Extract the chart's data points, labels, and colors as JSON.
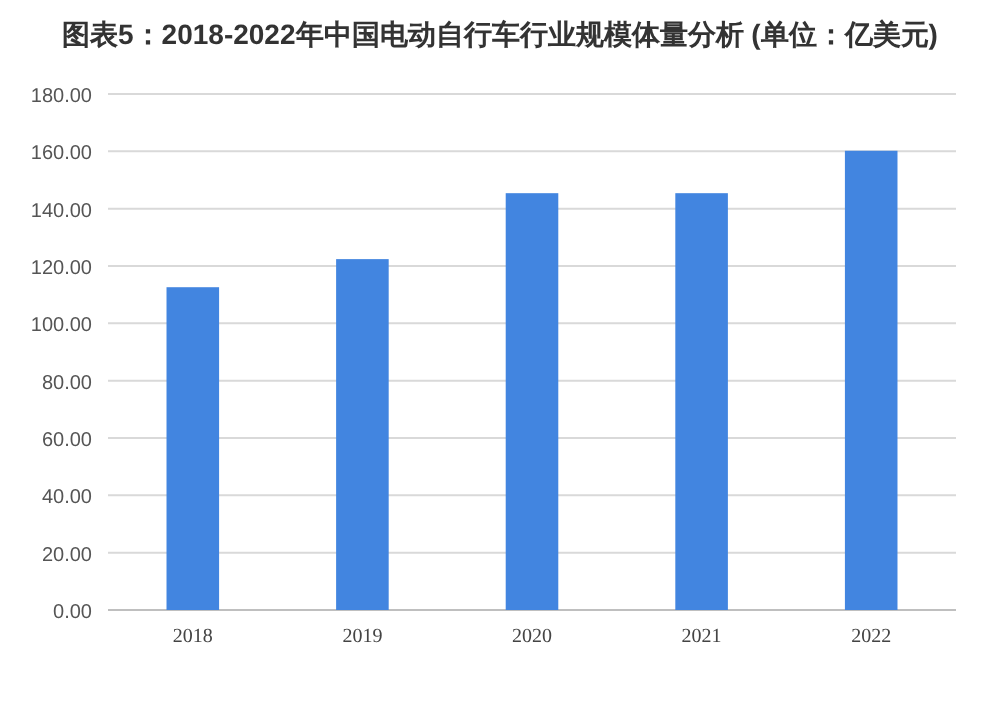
{
  "chart_data": {
    "type": "bar",
    "title": "图表5：2018-2022年中国电动自行车行业规模体量分析 (单位：亿美元)",
    "categories": [
      "2018",
      "2019",
      "2020",
      "2021",
      "2022"
    ],
    "values": [
      112.6,
      122.4,
      145.4,
      145.4,
      160.2
    ],
    "color": "#4285e0",
    "ylim": [
      0,
      180
    ],
    "yticks": [
      {
        "value": 0,
        "label": "0.00"
      },
      {
        "value": 20,
        "label": "20.00"
      },
      {
        "value": 40,
        "label": "40.00"
      },
      {
        "value": 60,
        "label": "60.00"
      },
      {
        "value": 80,
        "label": "80.00"
      },
      {
        "value": 100,
        "label": "100.00"
      },
      {
        "value": 120,
        "label": "120.00"
      },
      {
        "value": 140,
        "label": "140.00"
      },
      {
        "value": 160,
        "label": "160.00"
      },
      {
        "value": 180,
        "label": "180.00"
      }
    ],
    "grid": "y"
  }
}
